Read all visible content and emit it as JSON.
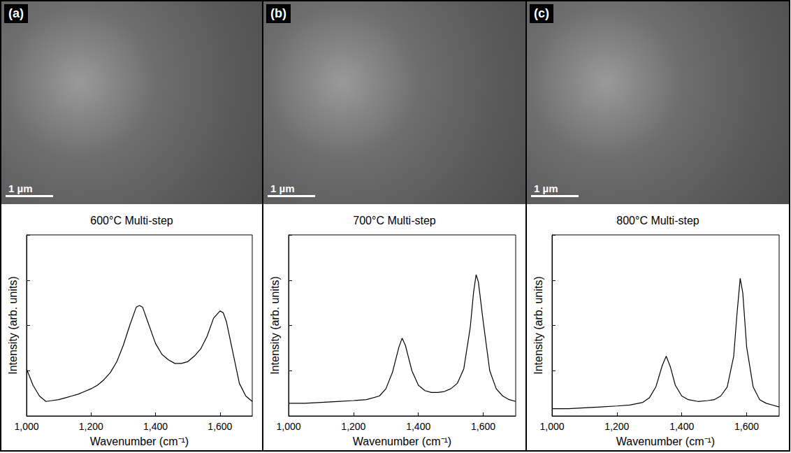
{
  "images": [
    {
      "label": "(a)",
      "scale_bar": "1 µm"
    },
    {
      "label": "(b)",
      "scale_bar": "1 µm"
    },
    {
      "label": "(c)",
      "scale_bar": "1 µm"
    }
  ],
  "chart_data": [
    {
      "type": "line",
      "title": "600°C Multi-step",
      "x_label": "Wavenumber (cm⁻¹)",
      "y_label": "Intensity (arb. units)",
      "x": [
        1000,
        1020,
        1040,
        1060,
        1080,
        1100,
        1120,
        1140,
        1160,
        1180,
        1200,
        1220,
        1240,
        1260,
        1280,
        1300,
        1320,
        1340,
        1350,
        1360,
        1380,
        1400,
        1420,
        1440,
        1460,
        1480,
        1500,
        1520,
        1540,
        1560,
        1580,
        1600,
        1610,
        1620,
        1640,
        1660,
        1680,
        1700
      ],
      "values": [
        0.26,
        0.17,
        0.11,
        0.08,
        0.085,
        0.09,
        0.1,
        0.11,
        0.12,
        0.135,
        0.15,
        0.17,
        0.2,
        0.24,
        0.3,
        0.39,
        0.5,
        0.6,
        0.61,
        0.6,
        0.5,
        0.4,
        0.34,
        0.31,
        0.29,
        0.29,
        0.3,
        0.33,
        0.37,
        0.44,
        0.54,
        0.58,
        0.57,
        0.52,
        0.35,
        0.18,
        0.11,
        0.08
      ],
      "color": "#000000",
      "xlim": [
        1000,
        1700
      ],
      "xticks": [
        1000,
        1200,
        1400,
        1600
      ],
      "ylim": [
        0,
        1
      ],
      "yticks": [
        0,
        0.25,
        0.5,
        0.75,
        1
      ],
      "grid": false,
      "tick_labels": "x"
    },
    {
      "type": "line",
      "title": "700°C Multi-step",
      "x_label": "Wavenumber (cm⁻¹)",
      "y_label": "Intensity (arb. units)",
      "x": [
        1000,
        1050,
        1100,
        1150,
        1200,
        1240,
        1280,
        1300,
        1320,
        1340,
        1350,
        1360,
        1380,
        1400,
        1420,
        1440,
        1460,
        1480,
        1500,
        1520,
        1540,
        1560,
        1570,
        1578,
        1585,
        1600,
        1620,
        1640,
        1660,
        1680,
        1700
      ],
      "values": [
        0.07,
        0.07,
        0.075,
        0.08,
        0.085,
        0.09,
        0.11,
        0.15,
        0.24,
        0.38,
        0.43,
        0.39,
        0.25,
        0.17,
        0.14,
        0.13,
        0.13,
        0.135,
        0.15,
        0.18,
        0.26,
        0.49,
        0.68,
        0.78,
        0.74,
        0.52,
        0.25,
        0.15,
        0.11,
        0.09,
        0.08
      ],
      "color": "#000000",
      "xlim": [
        1000,
        1700
      ],
      "xticks": [
        1000,
        1200,
        1400,
        1600
      ],
      "ylim": [
        0,
        1
      ],
      "yticks": [
        0,
        0.25,
        0.5,
        0.75,
        1
      ],
      "grid": false,
      "tick_labels": "x"
    },
    {
      "type": "line",
      "title": "800°C Multi-step",
      "x_label": "Wavenumber (cm⁻¹)",
      "y_label": "Intensity (arb. units)",
      "x": [
        1000,
        1050,
        1100,
        1150,
        1200,
        1240,
        1280,
        1300,
        1320,
        1340,
        1352,
        1365,
        1380,
        1400,
        1420,
        1450,
        1480,
        1500,
        1520,
        1540,
        1560,
        1570,
        1580,
        1588,
        1600,
        1620,
        1640,
        1660,
        1680,
        1700
      ],
      "values": [
        0.04,
        0.04,
        0.045,
        0.05,
        0.055,
        0.06,
        0.075,
        0.1,
        0.16,
        0.28,
        0.33,
        0.27,
        0.17,
        0.11,
        0.09,
        0.08,
        0.085,
        0.09,
        0.11,
        0.16,
        0.33,
        0.56,
        0.76,
        0.68,
        0.38,
        0.16,
        0.09,
        0.07,
        0.06,
        0.05
      ],
      "color": "#000000",
      "xlim": [
        1000,
        1700
      ],
      "xticks": [
        1000,
        1200,
        1400,
        1600
      ],
      "ylim": [
        0,
        1
      ],
      "yticks": [
        0,
        0.25,
        0.5,
        0.75,
        1
      ],
      "grid": false,
      "tick_labels": "x"
    }
  ]
}
